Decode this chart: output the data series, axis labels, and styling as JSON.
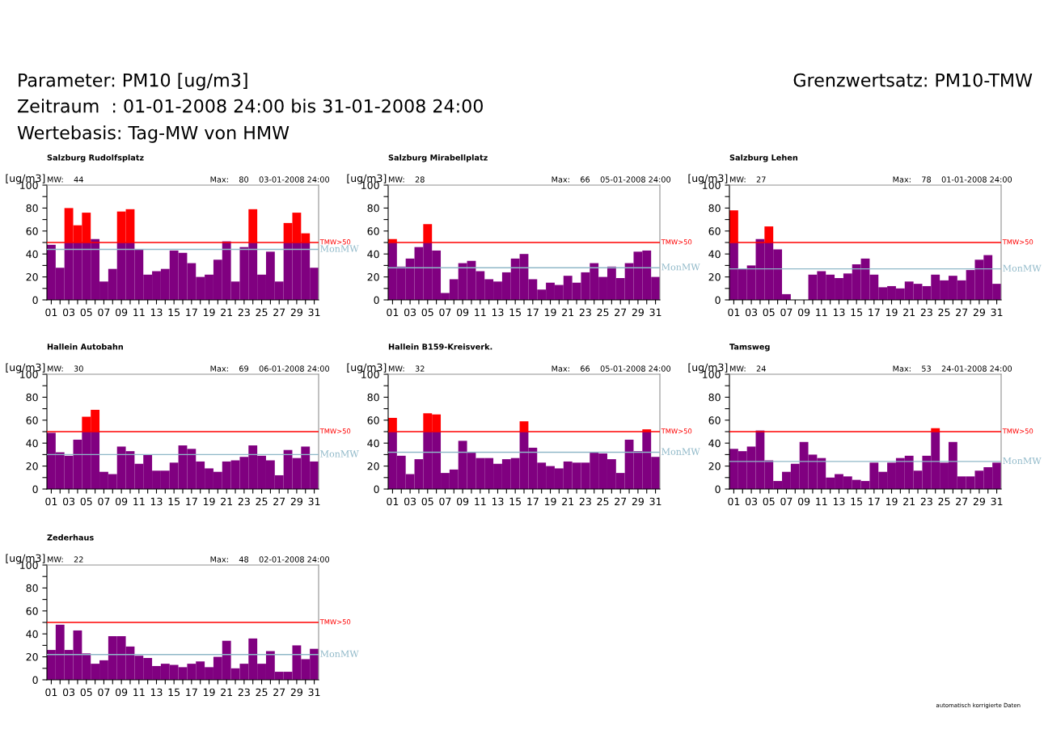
{
  "chart_data": [
    {
      "type": "bar",
      "stacked": true,
      "title": "Salzburg Rudolfsplatz",
      "ylabel": "[ug/m3]",
      "annotations": [
        "Parameter: PM10 [ug/m3]",
        "Zeitraum  : 01-01-2008 24:00 bis 31-01-2008 24:00",
        "Wertebasis: Tag-MW von HMW",
        "Grenzwertsatz: PM10-TMW",
        "automatisch korrigierte Daten",
        "MW:    44",
        "Max:    80",
        "03-01-2008 24:00"
      ],
      "categories": [
        "01",
        null,
        "03",
        null,
        "05",
        null,
        "07",
        null,
        "09",
        null,
        "11",
        null,
        "13",
        null,
        "15",
        null,
        "17",
        null,
        "19",
        null,
        "21",
        null,
        "23",
        null,
        "25",
        null,
        "27",
        null,
        "29",
        null,
        "31"
      ],
      "series": [
        {
          "color": "#800080",
          "values": [
            48,
            28,
            50,
            50,
            50,
            53,
            16,
            27,
            50,
            50,
            44,
            22,
            25,
            27,
            43,
            41,
            32,
            20,
            22,
            35,
            51,
            16,
            46,
            50,
            22,
            42,
            16,
            50,
            50,
            50,
            28
          ]
        },
        {
          "color": "#ff0000",
          "values": [
            null,
            null,
            30,
            15,
            26,
            null,
            null,
            null,
            27,
            29,
            null,
            null,
            null,
            null,
            null,
            null,
            null,
            null,
            null,
            null,
            null,
            null,
            null,
            29,
            null,
            null,
            null,
            17,
            26,
            8,
            null
          ]
        }
      ],
      "ylim": [
        0,
        100
      ],
      "yticks": [
        0,
        {
          "value": 10,
          "label": null
        },
        20,
        {
          "value": 30,
          "label": null
        },
        40,
        {
          "value": 50,
          "label": null
        },
        60,
        {
          "value": 70,
          "label": null
        },
        80,
        {
          "value": 90,
          "label": null
        },
        100
      ],
      "ref_lines": [
        {
          "axis": "y",
          "value": 50,
          "label": "TMW>50",
          "color": "#ff0000"
        },
        {
          "axis": "y",
          "value": 44,
          "label": "MonMW",
          "color": "#8fb8c8"
        }
      ],
      "grid": false,
      "legend": false
    },
    {
      "type": "bar",
      "stacked": true,
      "title": "Salzburg Mirabellplatz",
      "ylabel": "[ug/m3]",
      "annotations": [
        "MW:    28",
        "Max:    66",
        "05-01-2008 24:00"
      ],
      "categories": [
        "01",
        null,
        "03",
        null,
        "05",
        null,
        "07",
        null,
        "09",
        null,
        "11",
        null,
        "13",
        null,
        "15",
        null,
        "17",
        null,
        "19",
        null,
        "21",
        null,
        "23",
        null,
        "25",
        null,
        "27",
        null,
        "29",
        null,
        "31"
      ],
      "series": [
        {
          "color": "#800080",
          "values": [
            50,
            29,
            36,
            46,
            50,
            43,
            6,
            18,
            32,
            34,
            25,
            18,
            16,
            24,
            36,
            40,
            18,
            9,
            15,
            13,
            21,
            15,
            24,
            32,
            20,
            29,
            19,
            32,
            42,
            43,
            20
          ]
        },
        {
          "color": "#ff0000",
          "values": [
            3,
            null,
            null,
            null,
            16,
            null,
            null,
            null,
            null,
            null,
            null,
            null,
            null,
            null,
            null,
            null,
            null,
            null,
            null,
            null,
            null,
            null,
            null,
            null,
            null,
            null,
            null,
            null,
            null,
            null,
            null
          ]
        }
      ],
      "ylim": [
        0,
        100
      ],
      "yticks": [
        0,
        {
          "value": 10,
          "label": null
        },
        20,
        {
          "value": 30,
          "label": null
        },
        40,
        {
          "value": 50,
          "label": null
        },
        60,
        {
          "value": 70,
          "label": null
        },
        80,
        {
          "value": 90,
          "label": null
        },
        100
      ],
      "ref_lines": [
        {
          "axis": "y",
          "value": 50,
          "label": "TMW>50",
          "color": "#ff0000"
        },
        {
          "axis": "y",
          "value": 28,
          "label": "MonMW",
          "color": "#8fb8c8"
        }
      ],
      "grid": false,
      "legend": false
    },
    {
      "type": "bar",
      "stacked": true,
      "title": "Salzburg Lehen",
      "ylabel": "[ug/m3]",
      "annotations": [
        "MW:    27",
        "Max:    78",
        "01-01-2008 24:00"
      ],
      "categories": [
        "01",
        null,
        "03",
        null,
        "05",
        null,
        "07",
        null,
        "09",
        null,
        "11",
        null,
        "13",
        null,
        "15",
        null,
        "17",
        null,
        "19",
        null,
        "21",
        null,
        "23",
        null,
        "25",
        null,
        "27",
        null,
        "29",
        null,
        "31"
      ],
      "series": [
        {
          "color": "#800080",
          "values": [
            50,
            27,
            30,
            53,
            50,
            44,
            5,
            null,
            null,
            22,
            25,
            22,
            19,
            23,
            31,
            36,
            22,
            11,
            12,
            10,
            16,
            14,
            12,
            22,
            17,
            21,
            17,
            26,
            35,
            39,
            14
          ]
        },
        {
          "color": "#ff0000",
          "values": [
            28,
            null,
            null,
            null,
            14,
            null,
            null,
            null,
            null,
            null,
            null,
            null,
            null,
            null,
            null,
            null,
            null,
            null,
            null,
            null,
            null,
            null,
            null,
            null,
            null,
            null,
            null,
            null,
            null,
            null,
            null
          ]
        }
      ],
      "ylim": [
        0,
        100
      ],
      "yticks": [
        0,
        {
          "value": 10,
          "label": null
        },
        20,
        {
          "value": 30,
          "label": null
        },
        40,
        {
          "value": 50,
          "label": null
        },
        60,
        {
          "value": 70,
          "label": null
        },
        80,
        {
          "value": 90,
          "label": null
        },
        100
      ],
      "ref_lines": [
        {
          "axis": "y",
          "value": 50,
          "label": "TMW>50",
          "color": "#ff0000"
        },
        {
          "axis": "y",
          "value": 27,
          "label": "MonMW",
          "color": "#8fb8c8"
        }
      ],
      "grid": false,
      "legend": false
    },
    {
      "type": "bar",
      "stacked": true,
      "title": "Hallein Autobahn",
      "ylabel": "[ug/m3]",
      "annotations": [
        "MW:    30",
        "Max:    69",
        "06-01-2008 24:00"
      ],
      "categories": [
        "01",
        null,
        "03",
        null,
        "05",
        null,
        "07",
        null,
        "09",
        null,
        "11",
        null,
        "13",
        null,
        "15",
        null,
        "17",
        null,
        "19",
        null,
        "21",
        null,
        "23",
        null,
        "25",
        null,
        "27",
        null,
        "29",
        null,
        "31"
      ],
      "series": [
        {
          "color": "#800080",
          "values": [
            49,
            32,
            29,
            43,
            50,
            50,
            15,
            13,
            37,
            33,
            22,
            30,
            16,
            16,
            23,
            38,
            35,
            24,
            18,
            15,
            24,
            25,
            28,
            38,
            29,
            25,
            12,
            34,
            27,
            37,
            24
          ]
        },
        {
          "color": "#ff0000",
          "values": [
            null,
            null,
            null,
            null,
            13,
            19,
            null,
            null,
            null,
            null,
            null,
            null,
            null,
            null,
            null,
            null,
            null,
            null,
            null,
            null,
            null,
            null,
            null,
            null,
            null,
            null,
            null,
            null,
            null,
            null,
            null
          ]
        }
      ],
      "ylim": [
        0,
        100
      ],
      "yticks": [
        0,
        {
          "value": 10,
          "label": null
        },
        20,
        {
          "value": 30,
          "label": null
        },
        40,
        {
          "value": 50,
          "label": null
        },
        60,
        {
          "value": 70,
          "label": null
        },
        80,
        {
          "value": 90,
          "label": null
        },
        100
      ],
      "ref_lines": [
        {
          "axis": "y",
          "value": 50,
          "label": "TMW>50",
          "color": "#ff0000"
        },
        {
          "axis": "y",
          "value": 30,
          "label": "MonMW",
          "color": "#8fb8c8"
        }
      ],
      "grid": false,
      "legend": false
    },
    {
      "type": "bar",
      "stacked": true,
      "title": "Hallein B159-Kreisverk.",
      "ylabel": "[ug/m3]",
      "annotations": [
        "MW:    32",
        "Max:    66",
        "05-01-2008 24:00"
      ],
      "categories": [
        "01",
        null,
        "03",
        null,
        "05",
        null,
        "07",
        null,
        "09",
        null,
        "11",
        null,
        "13",
        null,
        "15",
        null,
        "17",
        null,
        "19",
        null,
        "21",
        null,
        "23",
        null,
        "25",
        null,
        "27",
        null,
        "29",
        null,
        "31"
      ],
      "series": [
        {
          "color": "#800080",
          "values": [
            50,
            29,
            13,
            26,
            50,
            50,
            14,
            17,
            42,
            32,
            27,
            27,
            22,
            26,
            27,
            50,
            36,
            23,
            20,
            18,
            24,
            23,
            23,
            32,
            31,
            26,
            14,
            43,
            33,
            50,
            28
          ]
        },
        {
          "color": "#ff0000",
          "values": [
            12,
            null,
            null,
            null,
            16,
            15,
            null,
            null,
            null,
            null,
            null,
            null,
            null,
            null,
            null,
            9,
            null,
            null,
            null,
            null,
            null,
            null,
            null,
            null,
            null,
            null,
            null,
            null,
            null,
            2,
            null
          ]
        }
      ],
      "ylim": [
        0,
        100
      ],
      "yticks": [
        0,
        {
          "value": 10,
          "label": null
        },
        20,
        {
          "value": 30,
          "label": null
        },
        40,
        {
          "value": 50,
          "label": null
        },
        60,
        {
          "value": 70,
          "label": null
        },
        80,
        {
          "value": 90,
          "label": null
        },
        100
      ],
      "ref_lines": [
        {
          "axis": "y",
          "value": 50,
          "label": "TMW>50",
          "color": "#ff0000"
        },
        {
          "axis": "y",
          "value": 32,
          "label": "MonMW",
          "color": "#8fb8c8"
        }
      ],
      "grid": false,
      "legend": false
    },
    {
      "type": "bar",
      "stacked": true,
      "title": "Tamsweg",
      "ylabel": "[ug/m3]",
      "annotations": [
        "MW:    24",
        "Max:    53",
        "24-01-2008 24:00"
      ],
      "categories": [
        "01",
        null,
        "03",
        null,
        "05",
        null,
        "07",
        null,
        "09",
        null,
        "11",
        null,
        "13",
        null,
        "15",
        null,
        "17",
        null,
        "19",
        null,
        "21",
        null,
        "23",
        null,
        "25",
        null,
        "27",
        null,
        "29",
        null,
        "31"
      ],
      "series": [
        {
          "color": "#800080",
          "values": [
            35,
            33,
            37,
            51,
            25,
            7,
            15,
            22,
            41,
            30,
            27,
            10,
            13,
            11,
            8,
            7,
            23,
            15,
            23,
            27,
            29,
            16,
            29,
            50,
            23,
            41,
            11,
            11,
            16,
            19,
            23
          ]
        },
        {
          "color": "#ff0000",
          "values": [
            null,
            null,
            null,
            null,
            null,
            null,
            null,
            null,
            null,
            null,
            null,
            null,
            null,
            null,
            null,
            null,
            null,
            null,
            null,
            null,
            null,
            null,
            null,
            3,
            null,
            null,
            null,
            null,
            null,
            null,
            null
          ]
        }
      ],
      "ylim": [
        0,
        100
      ],
      "yticks": [
        0,
        {
          "value": 10,
          "label": null
        },
        20,
        {
          "value": 30,
          "label": null
        },
        40,
        {
          "value": 50,
          "label": null
        },
        60,
        {
          "value": 70,
          "label": null
        },
        80,
        {
          "value": 90,
          "label": null
        },
        100
      ],
      "ref_lines": [
        {
          "axis": "y",
          "value": 50,
          "label": "TMW>50",
          "color": "#ff0000"
        },
        {
          "axis": "y",
          "value": 24,
          "label": "MonMW",
          "color": "#8fb8c8"
        }
      ],
      "grid": false,
      "legend": false
    },
    {
      "type": "bar",
      "stacked": true,
      "title": "Zederhaus",
      "ylabel": "[ug/m3]",
      "annotations": [
        "MW:    22",
        "Max:    48",
        "02-01-2008 24:00"
      ],
      "categories": [
        "01",
        null,
        "03",
        null,
        "05",
        null,
        "07",
        null,
        "09",
        null,
        "11",
        null,
        "13",
        null,
        "15",
        null,
        "17",
        null,
        "19",
        null,
        "21",
        null,
        "23",
        null,
        "25",
        null,
        "27",
        null,
        "29",
        null,
        "31"
      ],
      "series": [
        {
          "color": "#800080",
          "values": [
            26,
            48,
            26,
            43,
            23,
            14,
            17,
            38,
            38,
            29,
            21,
            19,
            12,
            14,
            13,
            11,
            14,
            16,
            11,
            20,
            34,
            10,
            14,
            36,
            14,
            25,
            7,
            7,
            30,
            18,
            27
          ]
        }
      ],
      "ylim": [
        0,
        100
      ],
      "yticks": [
        0,
        {
          "value": 10,
          "label": null
        },
        20,
        {
          "value": 30,
          "label": null
        },
        40,
        {
          "value": 50,
          "label": null
        },
        60,
        {
          "value": 70,
          "label": null
        },
        80,
        {
          "value": 90,
          "label": null
        },
        100
      ],
      "ref_lines": [
        {
          "axis": "y",
          "value": 50,
          "label": "TMW>50",
          "color": "#ff0000"
        },
        {
          "axis": "y",
          "value": 22,
          "label": "MonMW",
          "color": "#8fb8c8"
        }
      ],
      "grid": false,
      "legend": false
    }
  ]
}
